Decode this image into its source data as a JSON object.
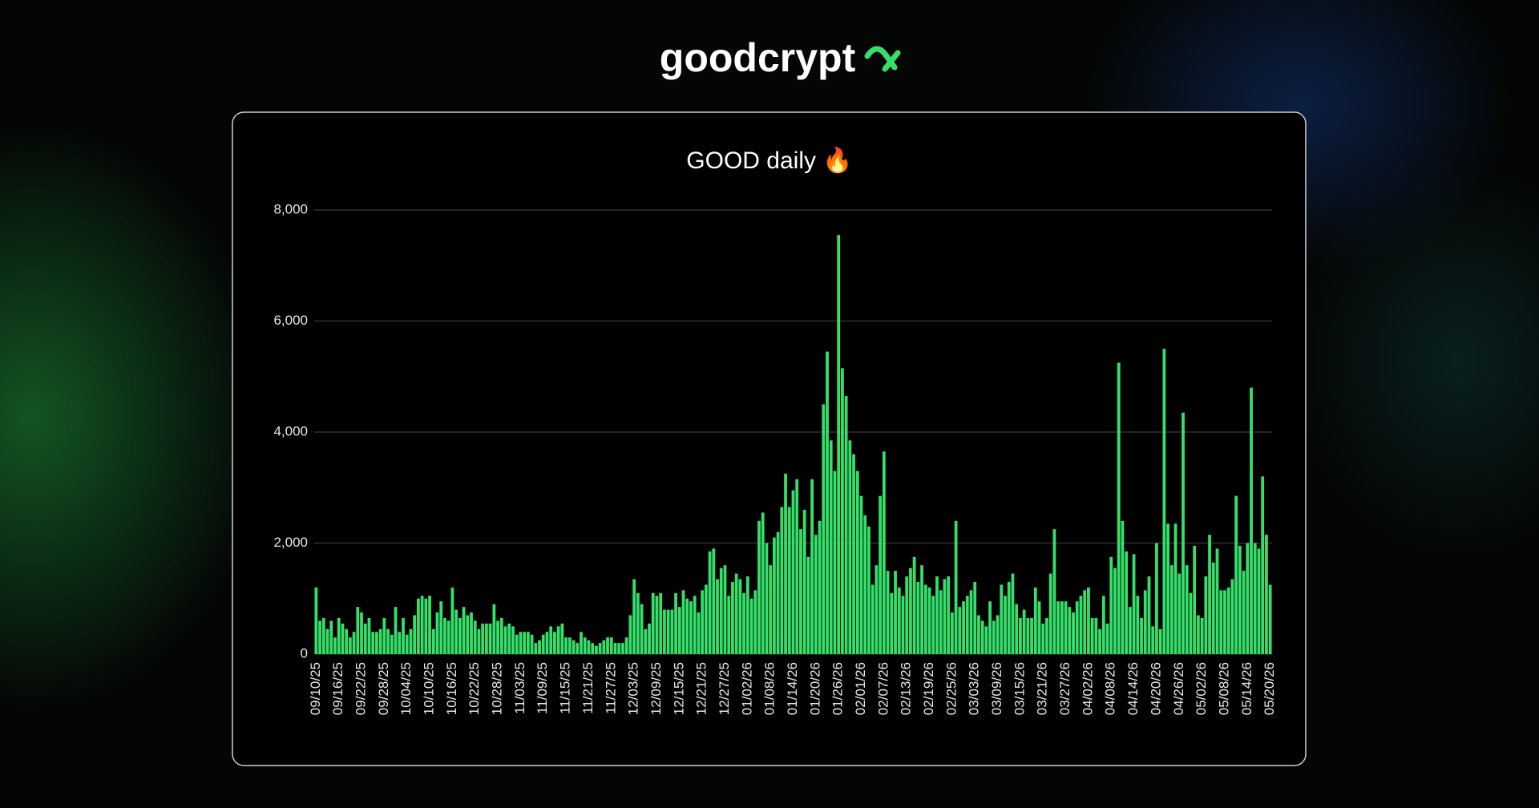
{
  "brand": "goodcrypt",
  "chart_data": {
    "type": "bar",
    "title": "GOOD daily 🔥",
    "categories": [
      "09/10/25",
      null,
      null,
      null,
      null,
      null,
      "09/16/25",
      null,
      null,
      null,
      null,
      null,
      "09/22/25",
      null,
      null,
      null,
      null,
      null,
      "09/28/25",
      null,
      null,
      null,
      null,
      null,
      "10/04/25",
      null,
      null,
      null,
      null,
      null,
      "10/10/25",
      null,
      null,
      null,
      null,
      null,
      "10/16/25",
      null,
      null,
      null,
      null,
      null,
      "10/22/25",
      null,
      null,
      null,
      null,
      null,
      "10/28/25",
      null,
      null,
      null,
      null,
      null,
      "11/03/25",
      null,
      null,
      null,
      null,
      null,
      "11/09/25",
      null,
      null,
      null,
      null,
      null,
      "11/15/25",
      null,
      null,
      null,
      null,
      null,
      "11/21/25",
      null,
      null,
      null,
      null,
      null,
      "11/27/25",
      null,
      null,
      null,
      null,
      null,
      "12/03/25",
      null,
      null,
      null,
      null,
      null,
      "12/09/25",
      null,
      null,
      null,
      null,
      null,
      "12/15/25",
      null,
      null,
      null,
      null,
      null,
      "12/21/25",
      null,
      null,
      null,
      null,
      null,
      "12/27/25",
      null,
      null,
      null,
      null,
      null,
      "01/02/26",
      null,
      null,
      null,
      null,
      null,
      "01/08/26",
      null,
      null,
      null,
      null,
      null,
      "01/14/26",
      null,
      null,
      null,
      null,
      null,
      "01/20/26",
      null,
      null,
      null,
      null,
      null,
      "01/26/26",
      null,
      null,
      null,
      null,
      null,
      "02/01/26",
      null,
      null,
      null,
      null,
      null,
      "02/07/26",
      null,
      null,
      null,
      null,
      null,
      "02/13/26",
      null,
      null,
      null,
      null,
      null,
      "02/19/26",
      null,
      null,
      null,
      null,
      null,
      "02/25/26",
      null,
      null,
      null,
      null,
      null,
      "03/03/26",
      null,
      null,
      null,
      null,
      null,
      "03/09/26",
      null,
      null,
      null,
      null,
      null,
      "03/15/26",
      null,
      null,
      null,
      null,
      null,
      "03/21/26",
      null,
      null,
      null,
      null,
      null,
      "03/27/26",
      null,
      null,
      null,
      null,
      null,
      "04/02/26",
      null,
      null,
      null,
      null,
      null,
      "04/08/26",
      null,
      null,
      null,
      null,
      null,
      "04/14/26",
      null,
      null,
      null,
      null,
      null,
      "04/20/26",
      null,
      null,
      null,
      null,
      null,
      "04/26/26",
      null,
      null,
      null,
      null,
      null,
      "05/02/26",
      null,
      null,
      null,
      null,
      null,
      "05/08/26",
      null,
      null,
      null,
      null,
      null,
      "05/14/26",
      null,
      null,
      null,
      null,
      null,
      "05/20/26"
    ],
    "values": [
      1200,
      600,
      650,
      450,
      600,
      300,
      650,
      550,
      450,
      300,
      400,
      850,
      750,
      550,
      650,
      400,
      400,
      450,
      650,
      450,
      350,
      850,
      400,
      650,
      350,
      450,
      700,
      1000,
      1050,
      1000,
      1050,
      450,
      750,
      950,
      650,
      600,
      1200,
      800,
      650,
      850,
      700,
      750,
      600,
      450,
      550,
      550,
      550,
      900,
      600,
      650,
      500,
      550,
      500,
      350,
      400,
      400,
      400,
      350,
      200,
      250,
      350,
      400,
      500,
      400,
      500,
      550,
      300,
      300,
      250,
      200,
      400,
      300,
      250,
      200,
      150,
      200,
      250,
      300,
      300,
      200,
      200,
      200,
      300,
      700,
      1350,
      1100,
      900,
      450,
      550,
      1100,
      1050,
      1100,
      800,
      800,
      800,
      1100,
      850,
      1150,
      1000,
      950,
      1050,
      750,
      1150,
      1250,
      1850,
      1900,
      1350,
      1550,
      1600,
      1050,
      1300,
      1450,
      1350,
      1100,
      1400,
      1000,
      1150,
      2400,
      2550,
      2000,
      1600,
      2100,
      2200,
      2650,
      3250,
      2650,
      2950,
      3150,
      2250,
      2600,
      1750,
      3150,
      2150,
      2400,
      4500,
      5450,
      3850,
      3300,
      7550,
      5150,
      4650,
      3850,
      3600,
      3300,
      2850,
      2500,
      2300,
      1250,
      1600,
      2850,
      3650,
      1500,
      1100,
      1500,
      1200,
      1050,
      1400,
      1550,
      1750,
      1300,
      1600,
      1250,
      1200,
      1050,
      1400,
      1150,
      1350,
      1400,
      750,
      2400,
      850,
      950,
      1050,
      1150,
      1300,
      700,
      600,
      500,
      950,
      600,
      700,
      1250,
      1050,
      1300,
      1450,
      900,
      650,
      800,
      650,
      650,
      1200,
      950,
      550,
      650,
      1450,
      2250,
      950,
      950,
      950,
      850,
      750,
      950,
      1050,
      1150,
      1200,
      650,
      650,
      450,
      1050,
      550,
      1750,
      1550,
      5250,
      2400,
      1850,
      850,
      1800,
      1050,
      650,
      1150,
      1400,
      500,
      2000,
      450,
      5500,
      2350,
      1600,
      2350,
      1450,
      4350,
      1600,
      1100,
      1950,
      700,
      650,
      1400,
      2150,
      1650,
      1900,
      1150,
      1150,
      1200,
      1350,
      2850,
      1950,
      1500,
      2000,
      4800,
      2000,
      1900,
      3200,
      2150,
      1250
    ],
    "color": "#35e06a",
    "ylim": [
      0,
      8000
    ],
    "yticks": [
      0,
      {
        "value": 2000,
        "label": "2,000"
      },
      {
        "value": 4000,
        "label": "4,000"
      },
      {
        "value": 6000,
        "label": "6,000"
      },
      {
        "value": 8000,
        "label": "8,000"
      }
    ],
    "grid": true
  }
}
